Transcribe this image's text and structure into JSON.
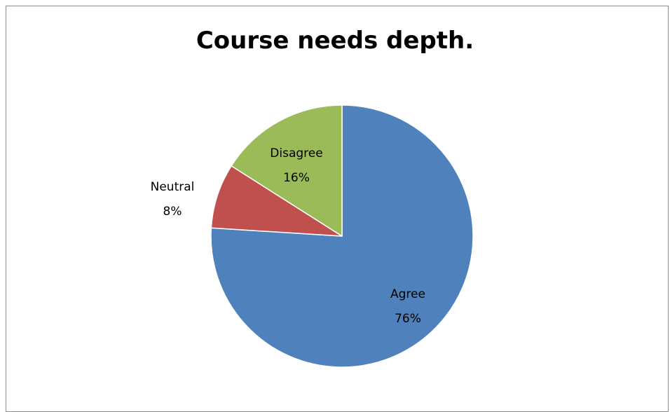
{
  "chart_data": {
    "type": "pie",
    "title": "Course needs depth.",
    "slices": [
      {
        "label": "Agree",
        "value": 76,
        "value_label": "76%",
        "color": "#4F81BD"
      },
      {
        "label": "Neutral",
        "value": 8,
        "value_label": "8%",
        "color": "#C0504D"
      },
      {
        "label": "Disagree",
        "value": 16,
        "value_label": "16%",
        "color": "#9BBB59"
      }
    ],
    "start_angle": "12 o'clock",
    "direction": "clockwise",
    "legend": "none"
  }
}
